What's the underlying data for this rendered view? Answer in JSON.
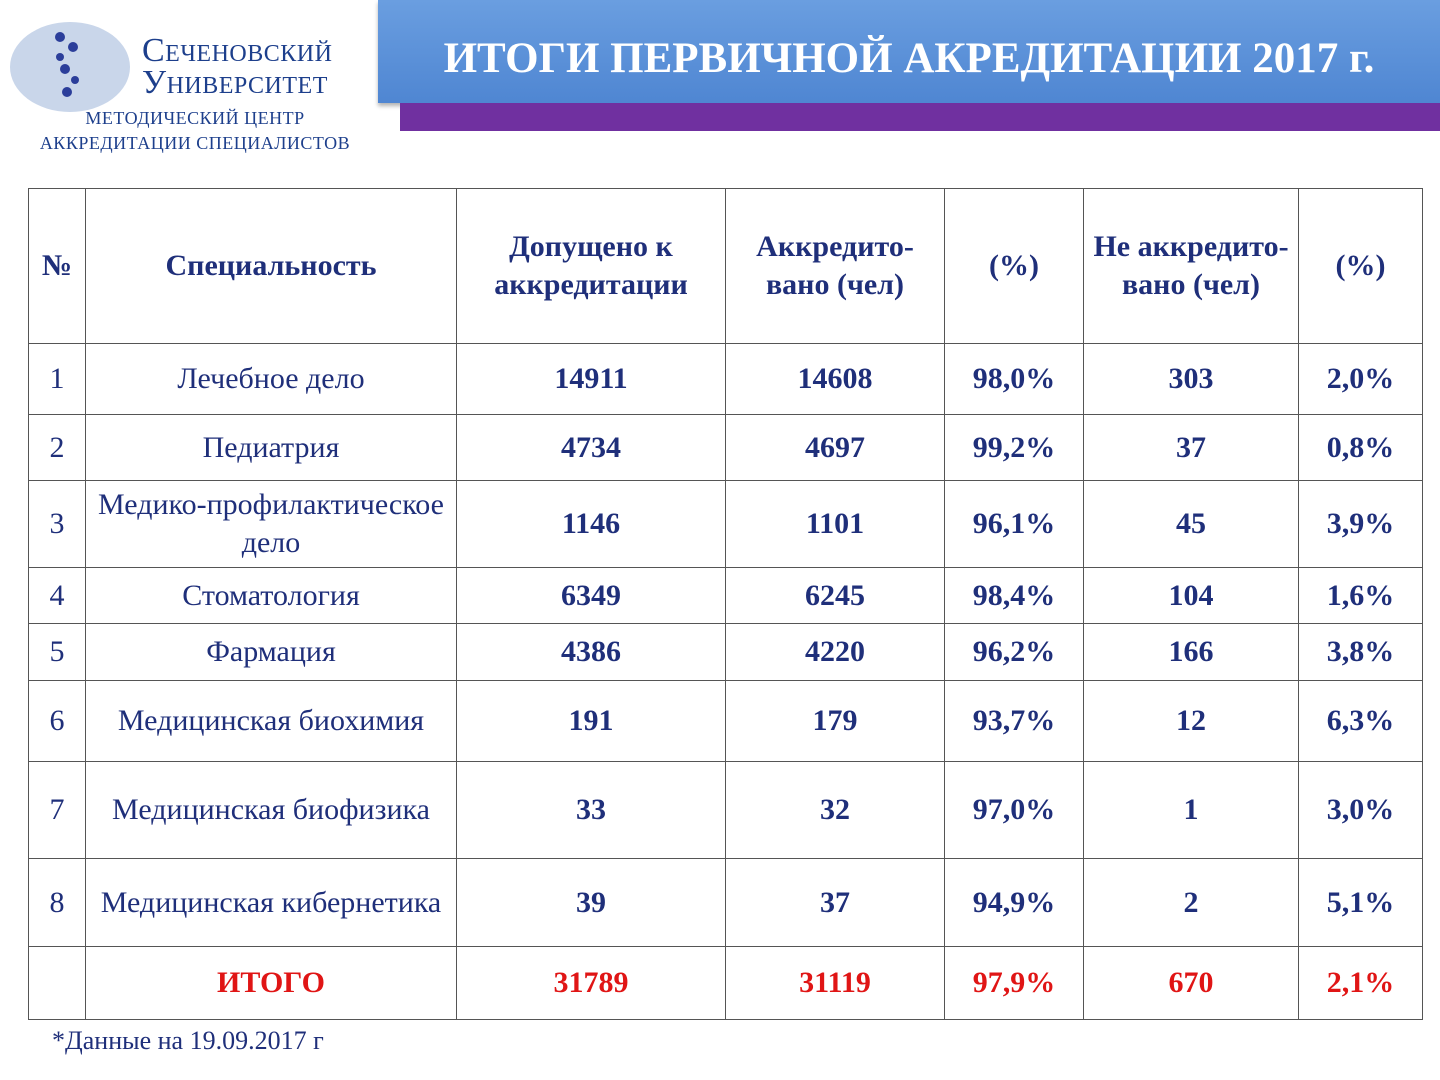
{
  "header": {
    "logo_line1": "Сеченовский",
    "logo_line2": "Университет",
    "center_line1": "МЕТОДИЧЕСКИЙ ЦЕНТР",
    "center_line2": "АККРЕДИТАЦИИ СПЕЦИАЛИСТОВ",
    "title": "ИТОГИ ПЕРВИЧНОЙ АКРЕДИТАЦИИ 2017 г."
  },
  "table": {
    "columns": [
      "№",
      "Специальность",
      "Допущено к аккредитации",
      "Аккредито-вано (чел)",
      "(%)",
      "Не аккредито-вано (чел)",
      "(%)"
    ],
    "rows": [
      [
        "1",
        "Лечебное дело",
        "14911",
        "14608",
        "98,0%",
        "303",
        "2,0%"
      ],
      [
        "2",
        "Педиатрия",
        "4734",
        "4697",
        "99,2%",
        "37",
        "0,8%"
      ],
      [
        "3",
        "Медико-профилактическое дело",
        "1146",
        "1101",
        "96,1%",
        "45",
        "3,9%"
      ],
      [
        "4",
        "Стоматология",
        "6349",
        "6245",
        "98,4%",
        "104",
        "1,6%"
      ],
      [
        "5",
        "Фармация",
        "4386",
        "4220",
        "96,2%",
        "166",
        "3,8%"
      ],
      [
        "6",
        "Медицинская биохимия",
        "191",
        "179",
        "93,7%",
        "12",
        "6,3%"
      ],
      [
        "7",
        "Медицинская биофизика",
        "33",
        "32",
        "97,0%",
        "1",
        "3,0%"
      ],
      [
        "8",
        "Медицинская кибернетика",
        "39",
        "37",
        "94,9%",
        "2",
        "5,1%"
      ]
    ],
    "total": [
      "ИТОГО",
      "31789",
      "31119",
      "97,9%",
      "670",
      "2,1%"
    ]
  },
  "footnote": "*Данные на 19.09.2017 г"
}
